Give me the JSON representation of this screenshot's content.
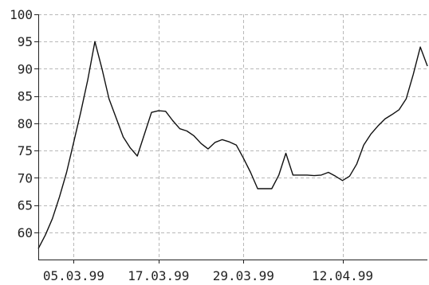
{
  "chart_data": {
    "type": "line",
    "x_tick_labels": [
      "05.03.99",
      "17.03.99",
      "29.03.99",
      "12.04.99"
    ],
    "x_tick_dates": [
      "1999-03-05",
      "1999-03-17",
      "1999-03-29",
      "1999-04-12"
    ],
    "xlim": [
      "1999-02-28",
      "1999-04-24"
    ],
    "ylim": [
      55,
      100
    ],
    "y_ticks": [
      60,
      65,
      70,
      75,
      80,
      85,
      90,
      95,
      100
    ],
    "y_tick_labels": [
      "60",
      "65",
      "70",
      "75",
      "80",
      "85",
      "90",
      "95",
      "100"
    ],
    "grid": true,
    "series": [
      {
        "x": [
          "1999-02-28",
          "1999-03-01",
          "1999-03-02",
          "1999-03-03",
          "1999-03-04",
          "1999-03-05",
          "1999-03-06",
          "1999-03-07",
          "1999-03-08",
          "1999-03-09",
          "1999-03-10",
          "1999-03-11",
          "1999-03-12",
          "1999-03-13",
          "1999-03-14",
          "1999-03-15",
          "1999-03-16",
          "1999-03-17",
          "1999-03-18",
          "1999-03-19",
          "1999-03-20",
          "1999-03-21",
          "1999-03-22",
          "1999-03-23",
          "1999-03-24",
          "1999-03-25",
          "1999-03-26",
          "1999-03-27",
          "1999-03-28",
          "1999-03-29",
          "1999-03-30",
          "1999-03-31",
          "1999-04-01",
          "1999-04-02",
          "1999-04-03",
          "1999-04-04",
          "1999-04-05",
          "1999-04-06",
          "1999-04-07",
          "1999-04-08",
          "1999-04-09",
          "1999-04-10",
          "1999-04-11",
          "1999-04-12",
          "1999-04-13",
          "1999-04-14",
          "1999-04-15",
          "1999-04-16",
          "1999-04-17",
          "1999-04-18",
          "1999-04-19",
          "1999-04-20",
          "1999-04-21",
          "1999-04-22",
          "1999-04-23",
          "1999-04-24"
        ],
        "values": [
          57,
          59.5,
          62.5,
          66.5,
          71,
          76.5,
          82,
          88,
          95,
          90,
          84.5,
          81,
          77.5,
          75.5,
          74,
          78,
          82,
          82.3,
          82.2,
          80.5,
          79,
          78.6,
          77.7,
          76.3,
          75.3,
          76.5,
          77,
          76.6,
          76,
          73.6,
          71,
          68,
          68,
          68,
          70.5,
          74.5,
          70.5,
          70.5,
          70.5,
          70.4,
          70.5,
          71,
          70.3,
          69.5,
          70.3,
          72.5,
          76,
          78,
          79.5,
          80.8,
          81.6,
          82.5,
          84.5,
          89,
          94,
          90.5
        ]
      }
    ]
  }
}
